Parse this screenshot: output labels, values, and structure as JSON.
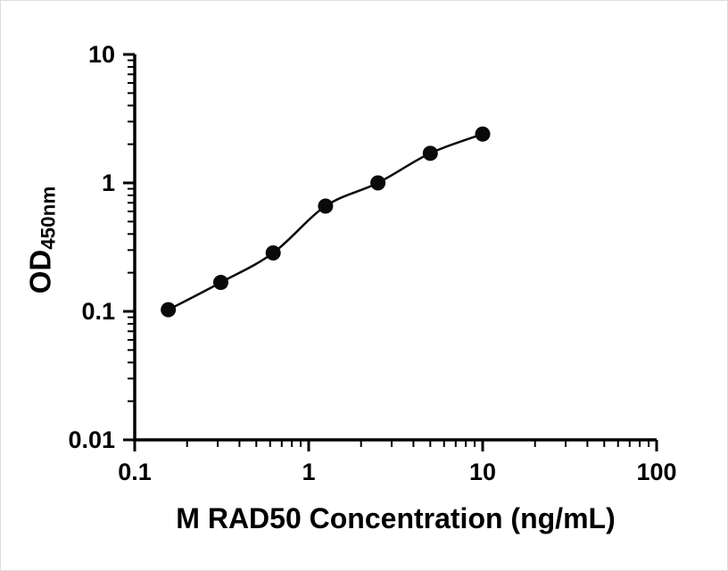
{
  "figure": {
    "background": "#ffffff",
    "axis_color": "#000000"
  },
  "chart_data": {
    "type": "scatter",
    "title": "",
    "xlabel": "M RAD50 Concentration (ng/mL)",
    "ylabel_main": "OD",
    "ylabel_sub": "450nm",
    "x_scale": "log10",
    "y_scale": "log10",
    "xlim": [
      0.1,
      100
    ],
    "ylim": [
      0.01,
      10
    ],
    "x_ticks": [
      0.1,
      1,
      10,
      100
    ],
    "x_tick_labels": [
      "0.1",
      "1",
      "10",
      "100"
    ],
    "y_ticks": [
      0.01,
      0.1,
      1,
      10
    ],
    "y_tick_labels": [
      "0.01",
      "0.1",
      "1",
      "10"
    ],
    "minor_ticks": true,
    "grid": false,
    "legend": false,
    "series": [
      {
        "marker": "filled-circle",
        "color": "#0a0a0a",
        "line": "smooth-fit",
        "points": [
          {
            "x": 0.156,
            "y": 0.103
          },
          {
            "x": 0.3125,
            "y": 0.168
          },
          {
            "x": 0.625,
            "y": 0.285
          },
          {
            "x": 1.25,
            "y": 0.66
          },
          {
            "x": 2.5,
            "y": 1.0
          },
          {
            "x": 5.0,
            "y": 1.7
          },
          {
            "x": 10.0,
            "y": 2.4
          }
        ]
      }
    ]
  }
}
